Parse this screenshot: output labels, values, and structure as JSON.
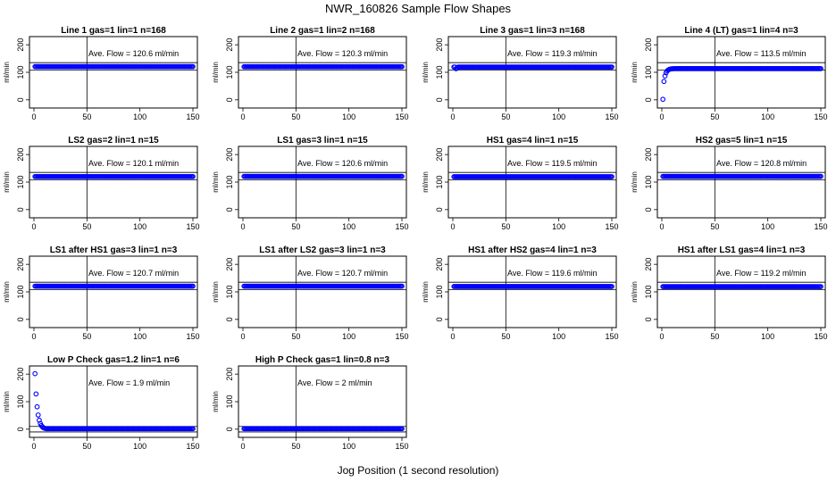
{
  "figure": {
    "title": "NWR_160826  Sample Flow Shapes",
    "xlabel": "Jog Position (1 second resolution)"
  },
  "chart_data": [
    {
      "type": "scatter",
      "title": "Line 1 gas=1 lin=1 n=168",
      "annotation": "Ave. Flow =  120.6  ml/min",
      "ylabel": "ml/min",
      "xlim": [
        0,
        150
      ],
      "ylim": [
        -20,
        220
      ],
      "xticks": [
        0,
        50,
        100,
        150
      ],
      "yticks": [
        0,
        100,
        200
      ],
      "ref_hline": [
        108,
        135
      ],
      "ref_vline": 50,
      "shape": "flat",
      "level": 120.6,
      "color": "#0000ff"
    },
    {
      "type": "scatter",
      "title": "Line 2 gas=1 lin=2 n=168",
      "annotation": "Ave. Flow =  120.3  ml/min",
      "ylabel": "ml/min",
      "xlim": [
        0,
        150
      ],
      "ylim": [
        -20,
        220
      ],
      "xticks": [
        0,
        50,
        100,
        150
      ],
      "yticks": [
        0,
        100,
        200
      ],
      "ref_hline": [
        108,
        135
      ],
      "ref_vline": 50,
      "shape": "flat",
      "level": 120.3,
      "color": "#0000ff"
    },
    {
      "type": "scatter",
      "title": "Line 3 gas=1 lin=3 n=168",
      "annotation": "Ave. Flow =  119.3  ml/min",
      "ylabel": "ml/min",
      "xlim": [
        0,
        150
      ],
      "ylim": [
        -20,
        220
      ],
      "xticks": [
        0,
        50,
        100,
        150
      ],
      "yticks": [
        0,
        100,
        200
      ],
      "ref_hline": [
        108,
        135
      ],
      "ref_vline": 50,
      "shape": "dip",
      "level": 119.3,
      "color": "#0000ff"
    },
    {
      "type": "scatter",
      "title": "Line 4 (LT) gas=1 lin=4 n=3",
      "annotation": "Ave. Flow =  113.5  ml/min",
      "ylabel": "ml/min",
      "xlim": [
        0,
        150
      ],
      "ylim": [
        -20,
        220
      ],
      "xticks": [
        0,
        50,
        100,
        150
      ],
      "yticks": [
        0,
        100,
        200
      ],
      "ref_hline": [
        108,
        135
      ],
      "ref_vline": 50,
      "shape": "rise",
      "level": 113.5,
      "color": "#0000ff"
    },
    {
      "type": "scatter",
      "title": "LS2 gas=2 lin=1 n=15",
      "annotation": "Ave. Flow =  120.1  ml/min",
      "ylabel": "ml/min",
      "xlim": [
        0,
        150
      ],
      "ylim": [
        -20,
        220
      ],
      "xticks": [
        0,
        50,
        100,
        150
      ],
      "yticks": [
        0,
        100,
        200
      ],
      "ref_hline": [
        108,
        135
      ],
      "ref_vline": 50,
      "shape": "flat",
      "level": 120.1,
      "color": "#0000ff"
    },
    {
      "type": "scatter",
      "title": "LS1 gas=3 lin=1 n=15",
      "annotation": "Ave. Flow =  120.6  ml/min",
      "ylabel": "ml/min",
      "xlim": [
        0,
        150
      ],
      "ylim": [
        -20,
        220
      ],
      "xticks": [
        0,
        50,
        100,
        150
      ],
      "yticks": [
        0,
        100,
        200
      ],
      "ref_hline": [
        108,
        135
      ],
      "ref_vline": 50,
      "shape": "flat",
      "level": 120.6,
      "color": "#0000ff"
    },
    {
      "type": "scatter",
      "title": "HS1 gas=4 lin=1 n=15",
      "annotation": "Ave. Flow =  119.5  ml/min",
      "ylabel": "ml/min",
      "xlim": [
        0,
        150
      ],
      "ylim": [
        -20,
        220
      ],
      "xticks": [
        0,
        50,
        100,
        150
      ],
      "yticks": [
        0,
        100,
        200
      ],
      "ref_hline": [
        108,
        135
      ],
      "ref_vline": 50,
      "shape": "flat",
      "level": 119.5,
      "color": "#0000ff"
    },
    {
      "type": "scatter",
      "title": "HS2 gas=5 lin=1 n=15",
      "annotation": "Ave. Flow =  120.8  ml/min",
      "ylabel": "ml/min",
      "xlim": [
        0,
        150
      ],
      "ylim": [
        -20,
        220
      ],
      "xticks": [
        0,
        50,
        100,
        150
      ],
      "yticks": [
        0,
        100,
        200
      ],
      "ref_hline": [
        108,
        135
      ],
      "ref_vline": 50,
      "shape": "flat",
      "level": 120.8,
      "color": "#0000ff"
    },
    {
      "type": "scatter",
      "title": "LS1 after HS1 gas=3 lin=1 n=3",
      "annotation": "Ave. Flow =  120.7  ml/min",
      "ylabel": "ml/min",
      "xlim": [
        0,
        150
      ],
      "ylim": [
        -20,
        220
      ],
      "xticks": [
        0,
        50,
        100,
        150
      ],
      "yticks": [
        0,
        100,
        200
      ],
      "ref_hline": [
        108,
        135
      ],
      "ref_vline": 50,
      "shape": "flat",
      "level": 120.7,
      "color": "#0000ff"
    },
    {
      "type": "scatter",
      "title": "LS1 after LS2 gas=3 lin=1 n=3",
      "annotation": "Ave. Flow =  120.7  ml/min",
      "ylabel": "ml/min",
      "xlim": [
        0,
        150
      ],
      "ylim": [
        -20,
        220
      ],
      "xticks": [
        0,
        50,
        100,
        150
      ],
      "yticks": [
        0,
        100,
        200
      ],
      "ref_hline": [
        108,
        135
      ],
      "ref_vline": 50,
      "shape": "flat",
      "level": 120.7,
      "color": "#0000ff"
    },
    {
      "type": "scatter",
      "title": "HS1 after HS2 gas=4 lin=1 n=3",
      "annotation": "Ave. Flow =  119.6  ml/min",
      "ylabel": "ml/min",
      "xlim": [
        0,
        150
      ],
      "ylim": [
        -20,
        220
      ],
      "xticks": [
        0,
        50,
        100,
        150
      ],
      "yticks": [
        0,
        100,
        200
      ],
      "ref_hline": [
        108,
        135
      ],
      "ref_vline": 50,
      "shape": "flat",
      "level": 119.6,
      "color": "#0000ff"
    },
    {
      "type": "scatter",
      "title": "HS1 after LS1 gas=4 lin=1 n=3",
      "annotation": "Ave. Flow =  119.2  ml/min",
      "ylabel": "ml/min",
      "xlim": [
        0,
        150
      ],
      "ylim": [
        -20,
        220
      ],
      "xticks": [
        0,
        50,
        100,
        150
      ],
      "yticks": [
        0,
        100,
        200
      ],
      "ref_hline": [
        108,
        135
      ],
      "ref_vline": 50,
      "shape": "flat",
      "level": 119.2,
      "color": "#0000ff"
    },
    {
      "type": "scatter",
      "title": "Low P Check gas=1.2 lin=1 n=6",
      "annotation": "Ave. Flow =  1.9  ml/min",
      "ylabel": "ml/min",
      "xlim": [
        0,
        150
      ],
      "ylim": [
        -20,
        220
      ],
      "xticks": [
        0,
        50,
        100,
        150
      ],
      "yticks": [
        0,
        100,
        200
      ],
      "ref_hline": [
        -10,
        10
      ],
      "ref_vline": 50,
      "shape": "decay",
      "level": 1.9,
      "color": "#0000ff"
    },
    {
      "type": "scatter",
      "title": "High P Check gas=1 lin=0.8 n=3",
      "annotation": "Ave. Flow =  2  ml/min",
      "ylabel": "ml/min",
      "xlim": [
        0,
        150
      ],
      "ylim": [
        -20,
        220
      ],
      "xticks": [
        0,
        50,
        100,
        150
      ],
      "yticks": [
        0,
        100,
        200
      ],
      "ref_hline": [
        -10,
        10
      ],
      "ref_vline": 50,
      "shape": "flat",
      "level": 2,
      "color": "#0000ff"
    }
  ]
}
